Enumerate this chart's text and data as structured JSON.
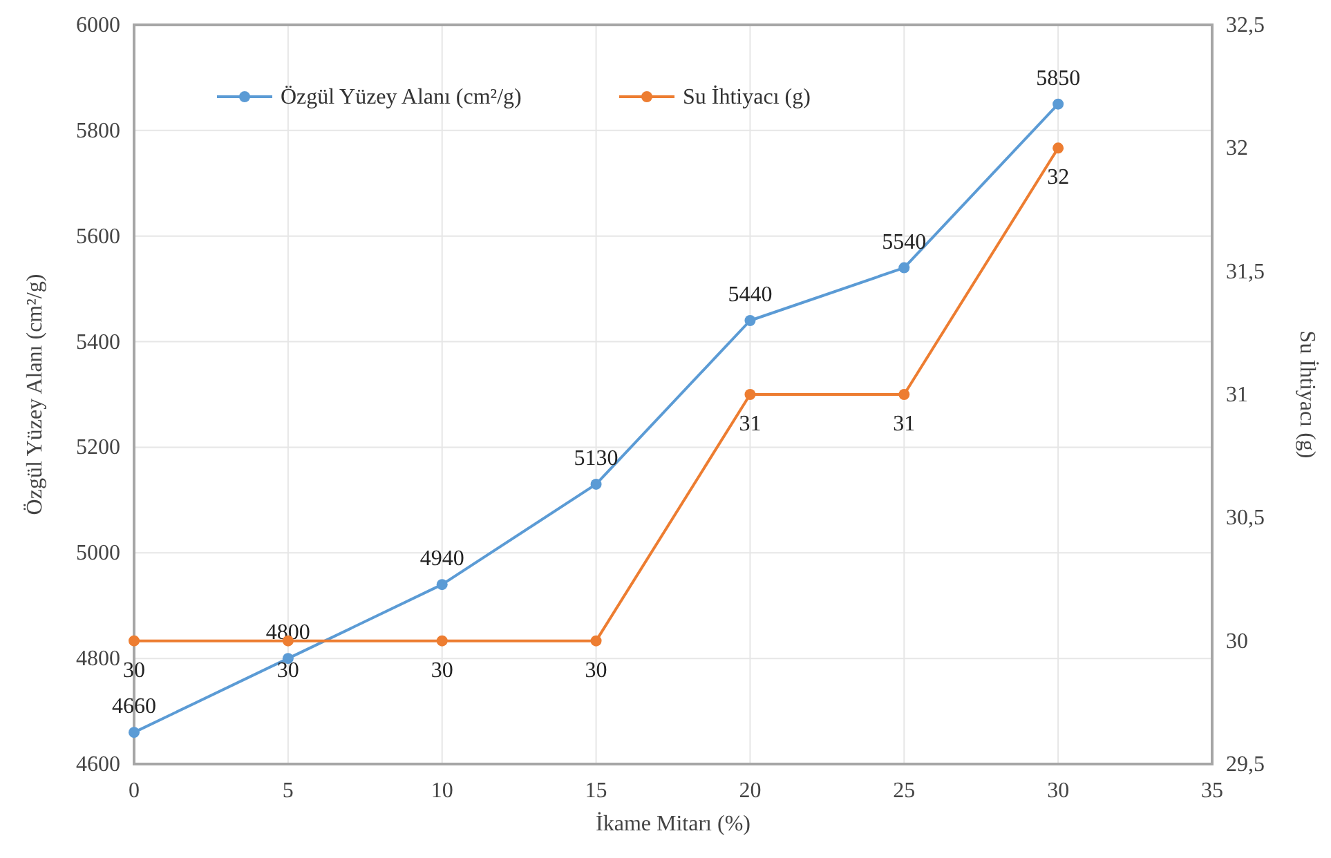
{
  "chart_data": {
    "type": "line",
    "xlabel": "İkame Mitarı (%)",
    "ylabel": "Özgül Yüzey Alanı (cm²/g)",
    "y2label": "Su İhtiyacı (g)",
    "x": [
      0,
      5,
      10,
      15,
      20,
      25,
      30
    ],
    "series": [
      {
        "name": "Özgül Yüzey Alanı (cm²/g)",
        "color": "#5b9bd5",
        "values": [
          4660,
          4800,
          4940,
          5130,
          5440,
          5540,
          5850
        ]
      },
      {
        "name": "Su İhtiyacı (g)",
        "color": "#ed7d31",
        "values": [
          30,
          30,
          30,
          30,
          31,
          31,
          32
        ],
        "axis": "y2"
      }
    ],
    "xlim": [
      0,
      35
    ],
    "xticks": [
      0,
      5,
      10,
      15,
      20,
      25,
      30,
      35
    ],
    "ylim": [
      4600,
      6000
    ],
    "yticks": [
      4600,
      4800,
      5000,
      5200,
      5400,
      5600,
      5800,
      6000
    ],
    "y2lim": [
      29.5,
      32.5
    ],
    "y2ticks": [
      {
        "value": 29.5,
        "label": "29,5"
      },
      30,
      {
        "value": 30.5,
        "label": "30,5"
      },
      31,
      {
        "value": 31.5,
        "label": "31,5"
      },
      32,
      {
        "value": 32.5,
        "label": "32,5"
      }
    ],
    "grid": true,
    "legend": "top",
    "marker": "circle",
    "line_style": "solid",
    "data_labels": true
  }
}
